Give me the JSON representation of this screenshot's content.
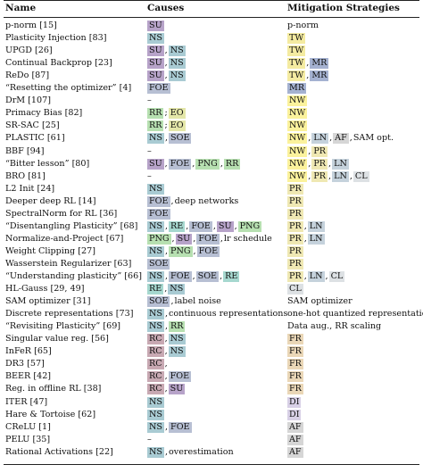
{
  "headers": {
    "name": "Name",
    "causes": "Causes",
    "mitigation": "Mitigation Strategies"
  },
  "tag_colors": {
    "SU": "#b7a3c9",
    "NS": "#a9cbd3",
    "FOE": "#b7bfd3",
    "RE": "#a6d8cf",
    "RR": "#b7e0b1",
    "EO": "#e4e7a9",
    "SOE": "#b7bfd3",
    "PNG": "#b7e0b1",
    "RC": "#c8a9b3",
    "TW": "#f4eba1",
    "MR": "#a5b2d1",
    "NW": "#fbf29c",
    "LN": "#c5d2dc",
    "AF": "#d6d6d6",
    "PR": "#efe8b3",
    "CL": "#dde1e4",
    "FR": "#ead7b7",
    "DI": "#d8d0e6"
  },
  "rows": [
    {
      "name": "p-norm",
      "cite": "[15]",
      "causes": [
        {
          "t": "SU"
        }
      ],
      "mitigation": [
        {
          "x": "p-norm"
        }
      ]
    },
    {
      "name": "Plasticity Injection",
      "cite": "[83]",
      "causes": [
        {
          "t": "NS"
        }
      ],
      "mitigation": [
        {
          "t": "TW"
        }
      ]
    },
    {
      "name": "UPGD",
      "cite": "[26]",
      "causes": [
        {
          "t": "SU"
        },
        {
          "s": ","
        },
        {
          "t": "NS"
        }
      ],
      "mitigation": [
        {
          "t": "TW"
        }
      ]
    },
    {
      "name": "Continual Backprop",
      "cite": "[23]",
      "causes": [
        {
          "t": "SU"
        },
        {
          "s": ","
        },
        {
          "t": "NS"
        }
      ],
      "mitigation": [
        {
          "t": "TW"
        },
        {
          "s": ","
        },
        {
          "t": "MR"
        }
      ]
    },
    {
      "name": "ReDo",
      "cite": "[87]",
      "causes": [
        {
          "t": "SU"
        },
        {
          "s": ","
        },
        {
          "t": "NS"
        }
      ],
      "mitigation": [
        {
          "t": "TW"
        },
        {
          "s": ","
        },
        {
          "t": "MR"
        }
      ]
    },
    {
      "name": "“Resetting the optimizer”",
      "cite": "[4]",
      "causes": [
        {
          "t": "FOE"
        }
      ],
      "mitigation": [
        {
          "t": "MR"
        }
      ]
    },
    {
      "name": "DrM",
      "cite": "[107]",
      "causes": [
        {
          "x": "–"
        }
      ],
      "mitigation": [
        {
          "t": "NW"
        }
      ]
    },
    {
      "name": "Primacy Bias",
      "cite": "[82]",
      "causes": [
        {
          "t": "RR"
        },
        {
          "s": ";"
        },
        {
          "t": "EO"
        }
      ],
      "mitigation": [
        {
          "t": "NW"
        }
      ]
    },
    {
      "name": "SR-SAC",
      "cite": "[25]",
      "causes": [
        {
          "t": "RR"
        },
        {
          "s": ";"
        },
        {
          "t": "EO"
        }
      ],
      "mitigation": [
        {
          "t": "NW"
        }
      ]
    },
    {
      "name": "PLASTIC",
      "cite": "[61]",
      "causes": [
        {
          "t": "NS"
        },
        {
          "s": ","
        },
        {
          "t": "SOE"
        }
      ],
      "mitigation": [
        {
          "t": "NW"
        },
        {
          "s": ","
        },
        {
          "t": "LN"
        },
        {
          "s": ","
        },
        {
          "t": "AF"
        },
        {
          "s": ","
        },
        {
          "x": "SAM opt."
        }
      ]
    },
    {
      "name": "BBF",
      "cite": "[94]",
      "causes": [
        {
          "x": "–"
        }
      ],
      "mitigation": [
        {
          "t": "NW"
        },
        {
          "s": ","
        },
        {
          "t": "PR"
        }
      ]
    },
    {
      "name": "“Bitter lesson”",
      "cite": "[80]",
      "causes": [
        {
          "t": "SU"
        },
        {
          "s": ","
        },
        {
          "t": "FOE"
        },
        {
          "s": ","
        },
        {
          "t": "PNG"
        },
        {
          "s": ","
        },
        {
          "t": "RR"
        }
      ],
      "mitigation": [
        {
          "t": "NW"
        },
        {
          "s": ","
        },
        {
          "t": "PR"
        },
        {
          "s": ","
        },
        {
          "t": "LN"
        }
      ]
    },
    {
      "name": "BRO",
      "cite": "[81]",
      "causes": [
        {
          "x": "–"
        }
      ],
      "mitigation": [
        {
          "t": "NW"
        },
        {
          "s": ","
        },
        {
          "t": "PR"
        },
        {
          "s": ","
        },
        {
          "t": "LN"
        },
        {
          "s": ","
        },
        {
          "t": "CL"
        }
      ]
    },
    {
      "name": "L2 Init",
      "cite": "[24]",
      "causes": [
        {
          "t": "NS"
        }
      ],
      "mitigation": [
        {
          "t": "PR"
        }
      ]
    },
    {
      "name": "Deeper deep RL",
      "cite": "[14]",
      "causes": [
        {
          "t": "FOE"
        },
        {
          "s": ","
        },
        {
          "x": "deep networks"
        }
      ],
      "mitigation": [
        {
          "t": "PR"
        }
      ]
    },
    {
      "name": "SpectralNorm for RL",
      "cite": "[36]",
      "causes": [
        {
          "t": "FOE"
        }
      ],
      "mitigation": [
        {
          "t": "PR"
        }
      ]
    },
    {
      "name": "“Disentangling Plasticity”",
      "cite": "[68]",
      "causes": [
        {
          "t": "NS"
        },
        {
          "s": ","
        },
        {
          "t": "RE"
        },
        {
          "s": ","
        },
        {
          "t": "FOE"
        },
        {
          "s": ","
        },
        {
          "t": "SU"
        },
        {
          "s": ","
        },
        {
          "t": "PNG"
        }
      ],
      "mitigation": [
        {
          "t": "PR"
        },
        {
          "s": ","
        },
        {
          "t": "LN"
        }
      ]
    },
    {
      "name": "Normalize-and-Project",
      "cite": "[67]",
      "causes": [
        {
          "t": "PNG"
        },
        {
          "s": ","
        },
        {
          "t": "SU"
        },
        {
          "s": ","
        },
        {
          "t": "FOE"
        },
        {
          "s": ","
        },
        {
          "x": "lr schedule"
        }
      ],
      "mitigation": [
        {
          "t": "PR"
        },
        {
          "s": ","
        },
        {
          "t": "LN"
        }
      ]
    },
    {
      "name": "Weight Clipping",
      "cite": "[27]",
      "causes": [
        {
          "t": "NS"
        },
        {
          "s": ","
        },
        {
          "t": "PNG"
        },
        {
          "s": ","
        },
        {
          "t": "FOE"
        }
      ],
      "mitigation": [
        {
          "t": "PR"
        }
      ]
    },
    {
      "name": "Wasserstein Regularizer",
      "cite": "[63]",
      "causes": [
        {
          "t": "SOE"
        }
      ],
      "mitigation": [
        {
          "t": "PR"
        }
      ]
    },
    {
      "name": "“Understanding plasticity”",
      "cite": "[66]",
      "causes": [
        {
          "t": "NS"
        },
        {
          "s": ","
        },
        {
          "t": "FOE"
        },
        {
          "s": ","
        },
        {
          "t": "SOE"
        },
        {
          "s": ","
        },
        {
          "t": "RE"
        }
      ],
      "mitigation": [
        {
          "t": "PR"
        },
        {
          "s": ","
        },
        {
          "t": "LN"
        },
        {
          "s": ","
        },
        {
          "t": "CL"
        }
      ]
    },
    {
      "name": "HL-Gauss",
      "cite": "[29, 49]",
      "causes": [
        {
          "t": "RE"
        },
        {
          "s": ","
        },
        {
          "t": "NS"
        }
      ],
      "mitigation": [
        {
          "t": "CL"
        }
      ]
    },
    {
      "name": "SAM optimizer",
      "cite": "[31]",
      "causes": [
        {
          "t": "SOE"
        },
        {
          "s": ","
        },
        {
          "x": "label noise"
        }
      ],
      "mitigation": [
        {
          "x": "SAM optimizer"
        }
      ]
    },
    {
      "name": "Discrete representations",
      "cite": "[73]",
      "causes": [
        {
          "t": "NS"
        },
        {
          "s": ","
        },
        {
          "x": "continuous representations"
        }
      ],
      "mitigation": [
        {
          "x": "one-hot quantized representation"
        }
      ]
    },
    {
      "name": "“Revisiting Plasticity”",
      "cite": "[69]",
      "causes": [
        {
          "t": "NS"
        },
        {
          "s": ","
        },
        {
          "t": "RR"
        }
      ],
      "mitigation": [
        {
          "x": "Data aug., RR scaling"
        }
      ]
    },
    {
      "name": "Singular value reg.",
      "cite": "[56]",
      "causes": [
        {
          "t": "RC"
        },
        {
          "s": ","
        },
        {
          "t": "NS"
        }
      ],
      "mitigation": [
        {
          "t": "FR"
        }
      ]
    },
    {
      "name": "InFeR",
      "cite": "[65]",
      "causes": [
        {
          "t": "RC"
        },
        {
          "s": ","
        },
        {
          "t": "NS"
        }
      ],
      "mitigation": [
        {
          "t": "FR"
        }
      ]
    },
    {
      "name": "DR3",
      "cite": "[57]",
      "causes": [
        {
          "t": "RC"
        },
        {
          "s": ","
        }
      ],
      "mitigation": [
        {
          "t": "FR"
        }
      ]
    },
    {
      "name": "BEER",
      "cite": "[42]",
      "causes": [
        {
          "t": "RC"
        },
        {
          "s": ","
        },
        {
          "t": "FOE"
        }
      ],
      "mitigation": [
        {
          "t": "FR"
        }
      ]
    },
    {
      "name": "Reg. in offline RL",
      "cite": "[38]",
      "causes": [
        {
          "t": "RC"
        },
        {
          "s": ","
        },
        {
          "t": "SU"
        }
      ],
      "mitigation": [
        {
          "t": "FR"
        }
      ]
    },
    {
      "name": "ITER",
      "cite": "[47]",
      "causes": [
        {
          "t": "NS"
        }
      ],
      "mitigation": [
        {
          "t": "DI"
        }
      ]
    },
    {
      "name": "Hare & Tortoise",
      "cite": "[62]",
      "causes": [
        {
          "t": "NS"
        }
      ],
      "mitigation": [
        {
          "t": "DI"
        }
      ]
    },
    {
      "name": "CReLU",
      "cite": "[1]",
      "causes": [
        {
          "t": "NS"
        },
        {
          "s": ","
        },
        {
          "t": "FOE"
        }
      ],
      "mitigation": [
        {
          "t": "AF"
        }
      ]
    },
    {
      "name": "PELU",
      "cite": "[35]",
      "causes": [
        {
          "x": "–"
        }
      ],
      "mitigation": [
        {
          "t": "AF"
        }
      ]
    },
    {
      "name": "Rational Activations",
      "cite": "[22]",
      "causes": [
        {
          "t": "NS"
        },
        {
          "s": ","
        },
        {
          "x": "overestimation"
        }
      ],
      "mitigation": [
        {
          "t": "AF"
        }
      ]
    }
  ]
}
